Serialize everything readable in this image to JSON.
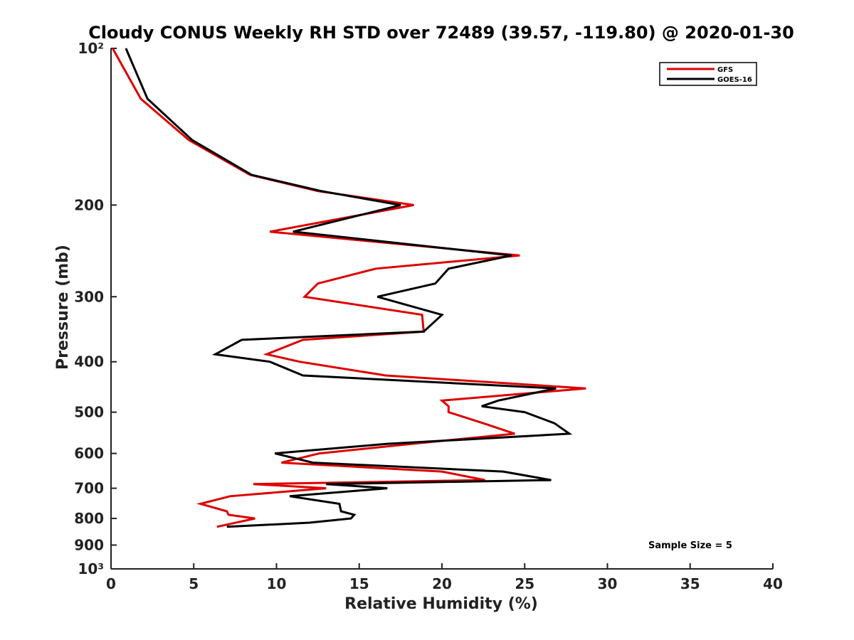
{
  "chart_data": {
    "type": "line",
    "title": "Cloudy CONUS Weekly RH STD over 72489 (39.57, -119.80) @ 2020-01-30",
    "xlabel": "Relative Humidity (%)",
    "ylabel": "Pressure (mb)",
    "xlim": [
      0,
      40
    ],
    "ylim": [
      1000,
      100
    ],
    "y_scale": "log",
    "y_inverted": true,
    "grid": false,
    "legend_placement": "top-right",
    "x_ticks": [
      "0",
      "5",
      "10",
      "15",
      "20",
      "25",
      "30",
      "35",
      "40"
    ],
    "y_tick_values": [
      100,
      200,
      300,
      400,
      500,
      600,
      700,
      800,
      900,
      1000
    ],
    "y_ticks": [
      "10²",
      "200",
      "300",
      "400",
      "500",
      "600",
      "700",
      "800",
      "900",
      "10³"
    ],
    "annotation": "Sample Size = 5",
    "series": [
      {
        "name": "GFS",
        "color": "#dd0000",
        "points": [
          [
            0.1,
            100
          ],
          [
            1.8,
            125
          ],
          [
            4.7,
            150
          ],
          [
            8.4,
            175
          ],
          [
            12.5,
            188
          ],
          [
            18.3,
            200
          ],
          [
            9.6,
            225
          ],
          [
            24.7,
            250
          ],
          [
            16.0,
            265
          ],
          [
            12.5,
            283
          ],
          [
            11.7,
            300
          ],
          [
            18.8,
            325
          ],
          [
            18.9,
            350
          ],
          [
            11.6,
            363
          ],
          [
            9.4,
            387
          ],
          [
            11.4,
            400
          ],
          [
            16.6,
            425
          ],
          [
            28.7,
            450
          ],
          [
            20.0,
            475
          ],
          [
            20.4,
            487
          ],
          [
            20.4,
            500
          ],
          [
            22.5,
            525
          ],
          [
            24.4,
            550
          ],
          [
            18.2,
            575
          ],
          [
            12.6,
            600
          ],
          [
            10.3,
            625
          ],
          [
            20.0,
            650
          ],
          [
            22.6,
            675
          ],
          [
            8.6,
            687
          ],
          [
            13.0,
            700
          ],
          [
            7.2,
            725
          ],
          [
            5.4,
            750
          ],
          [
            7.0,
            775
          ],
          [
            7.1,
            787
          ],
          [
            8.7,
            800
          ],
          [
            6.4,
            830
          ]
        ]
      },
      {
        "name": "GOES-16",
        "color": "#000000",
        "points": [
          [
            0.9,
            100
          ],
          [
            2.2,
            125
          ],
          [
            4.9,
            150
          ],
          [
            8.5,
            175
          ],
          [
            12.7,
            188
          ],
          [
            17.5,
            200
          ],
          [
            11.0,
            225
          ],
          [
            24.2,
            250
          ],
          [
            20.4,
            265
          ],
          [
            19.6,
            283
          ],
          [
            16.1,
            300
          ],
          [
            20.0,
            325
          ],
          [
            18.9,
            350
          ],
          [
            7.9,
            363
          ],
          [
            6.3,
            387
          ],
          [
            9.6,
            400
          ],
          [
            11.6,
            425
          ],
          [
            26.9,
            450
          ],
          [
            23.4,
            475
          ],
          [
            22.4,
            487
          ],
          [
            25.0,
            500
          ],
          [
            26.8,
            525
          ],
          [
            27.7,
            550
          ],
          [
            16.7,
            575
          ],
          [
            9.9,
            600
          ],
          [
            12.2,
            625
          ],
          [
            23.7,
            650
          ],
          [
            26.6,
            675
          ],
          [
            13.0,
            687
          ],
          [
            16.7,
            700
          ],
          [
            10.8,
            725
          ],
          [
            13.8,
            750
          ],
          [
            13.9,
            775
          ],
          [
            14.7,
            787
          ],
          [
            14.5,
            800
          ],
          [
            12.0,
            815
          ],
          [
            7.0,
            830
          ]
        ]
      }
    ]
  }
}
